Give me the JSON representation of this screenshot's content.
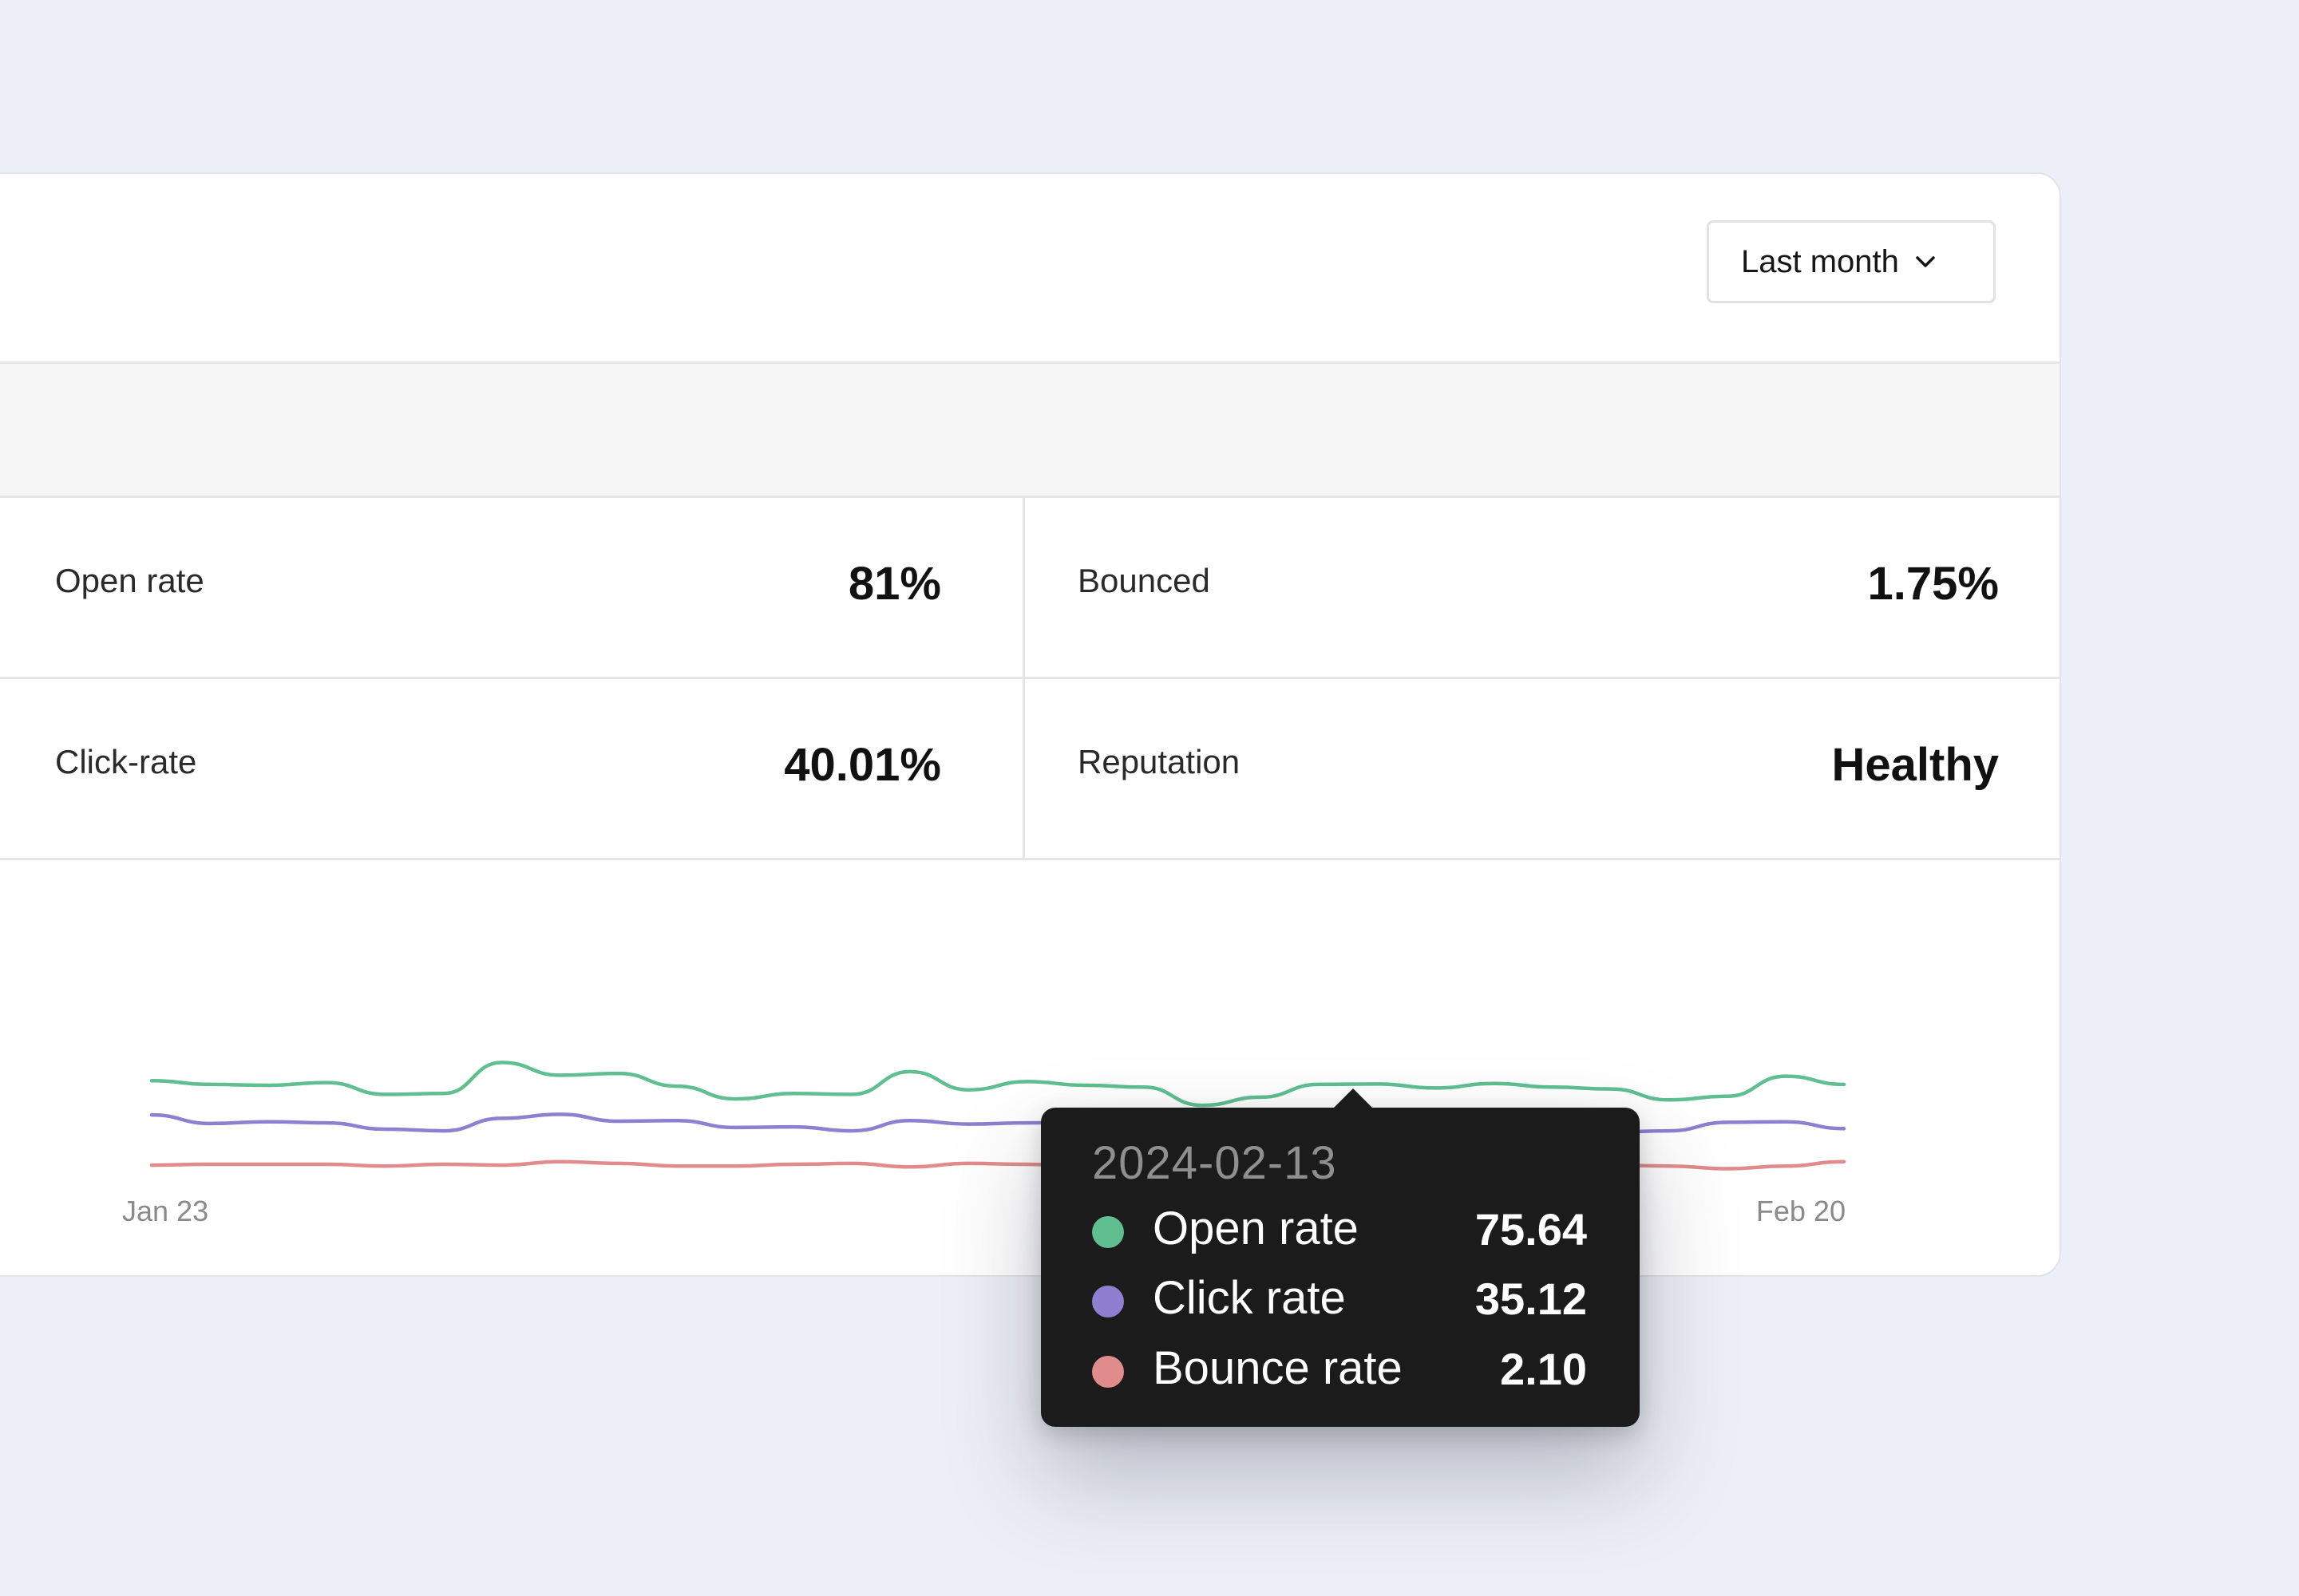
{
  "header": {
    "period_select": {
      "label": "Last month",
      "icon": "chevron-down-icon"
    }
  },
  "metrics": {
    "open_rate": {
      "label": "Open rate",
      "value": "81%"
    },
    "bounced": {
      "label": "Bounced",
      "value": "1.75%"
    },
    "click_rate": {
      "label": "Click-rate",
      "value": "40.01%"
    },
    "reputation": {
      "label": "Reputation",
      "value": "Healthy"
    }
  },
  "tooltip": {
    "date": "2024-02-13",
    "rows": [
      {
        "name": "Open rate",
        "value": "75.64",
        "color": "#5fbf91"
      },
      {
        "name": "Click rate",
        "value": "35.12",
        "color": "#8e7fd0"
      },
      {
        "name": "Bounce rate",
        "value": "2.10",
        "color": "#e08c8c"
      }
    ]
  },
  "chart_data": {
    "type": "line",
    "x_tick_labels": [
      "Jan 23",
      "Feb 20"
    ],
    "x": [
      "2024-01-23",
      "2024-01-24",
      "2024-01-25",
      "2024-01-26",
      "2024-01-27",
      "2024-01-28",
      "2024-01-29",
      "2024-01-30",
      "2024-01-31",
      "2024-02-01",
      "2024-02-02",
      "2024-02-03",
      "2024-02-04",
      "2024-02-05",
      "2024-02-06",
      "2024-02-07",
      "2024-02-08",
      "2024-02-09",
      "2024-02-10",
      "2024-02-11",
      "2024-02-12",
      "2024-02-13",
      "2024-02-14",
      "2024-02-15",
      "2024-02-16",
      "2024-02-17",
      "2024-02-18",
      "2024-02-19",
      "2024-02-20",
      "2024-02-21"
    ],
    "ylim": [
      0,
      100
    ],
    "grid": false,
    "legend": "none",
    "series": [
      {
        "name": "Open rate",
        "color": "#5fbf91",
        "values": [
          76.0,
          75.6,
          75.5,
          75.8,
          74.5,
          74.6,
          78.0,
          76.6,
          76.8,
          75.4,
          74.0,
          74.6,
          74.5,
          77.0,
          75.0,
          75.9,
          75.5,
          75.3,
          73.3,
          74.2,
          75.6,
          75.64,
          75.2,
          75.7,
          75.3,
          75.1,
          73.9,
          74.3,
          76.5,
          75.6
        ]
      },
      {
        "name": "Click rate",
        "color": "#8e7fd0",
        "values": [
          40.0,
          38.5,
          38.8,
          38.6,
          37.5,
          37.2,
          39.4,
          40.1,
          38.9,
          39.0,
          37.8,
          37.9,
          37.2,
          39.0,
          38.4,
          38.6,
          38.7,
          36.5,
          36.3,
          36.8,
          35.6,
          35.12,
          35.4,
          36.1,
          36.4,
          37.0,
          37.2,
          38.7,
          38.8,
          37.6
        ]
      },
      {
        "name": "Bounce rate",
        "color": "#e08c8c",
        "values": [
          2.4,
          2.5,
          2.5,
          2.5,
          2.3,
          2.5,
          2.4,
          2.8,
          2.6,
          2.3,
          2.3,
          2.5,
          2.6,
          2.2,
          2.6,
          2.5,
          2.2,
          2.3,
          2.3,
          2.4,
          2.1,
          2.1,
          2.3,
          2.3,
          2.4,
          2.4,
          2.3,
          2.0,
          2.3,
          2.8
        ]
      }
    ]
  }
}
